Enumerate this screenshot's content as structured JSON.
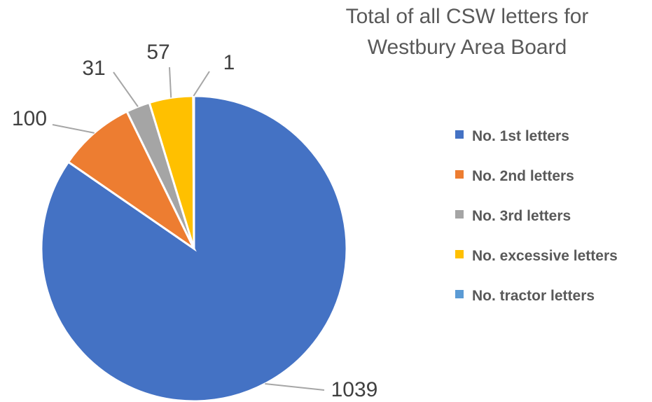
{
  "chart_data": {
    "type": "pie",
    "title": "Total of all CSW letters for Westbury Area Board",
    "title_lines": [
      "Total of all CSW letters for",
      "Westbury Area Board"
    ],
    "categories": [
      "No. 1st letters",
      "No. 2nd letters",
      "No. 3rd letters",
      "No. excessive letters",
      "No. tractor letters"
    ],
    "values": [
      1039,
      100,
      31,
      57,
      1
    ],
    "colors": [
      "#4472c4",
      "#ed7d31",
      "#a5a5a5",
      "#ffc000",
      "#5b9bd5"
    ],
    "data_labels": [
      "1039",
      "100",
      "31",
      "57",
      "1"
    ],
    "legend_position": "right",
    "start_angle_deg": 0,
    "direction": "clockwise"
  }
}
